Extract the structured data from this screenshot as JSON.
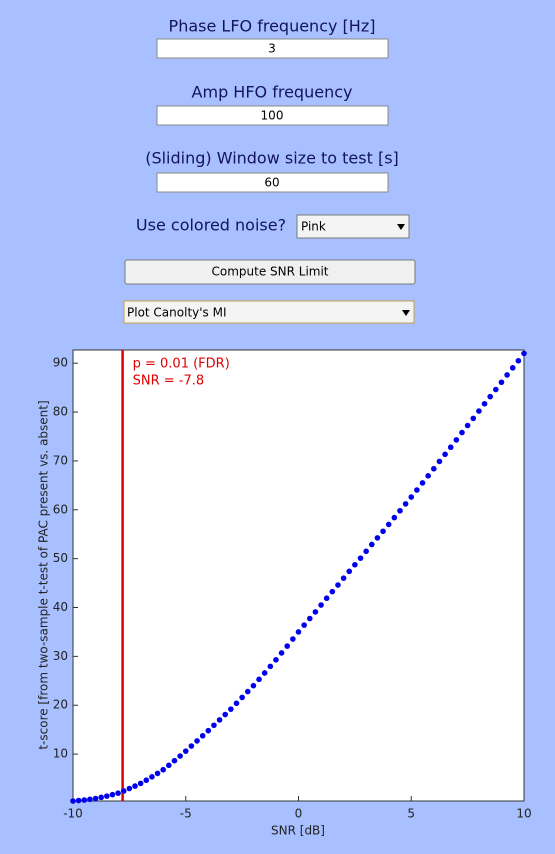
{
  "form": {
    "fields": [
      {
        "label": "Phase LFO frequency [Hz]",
        "value": "3"
      },
      {
        "label": "Amp HFO frequency",
        "value": "100"
      },
      {
        "label": "(Sliding) Window size to test [s]",
        "value": "60"
      }
    ],
    "noise": {
      "label": "Use colored noise?",
      "value": "Pink"
    },
    "button": "Compute SNR Limit",
    "plot_select": "Plot Canolty's MI"
  },
  "chart_data": {
    "type": "scatter",
    "xlabel": "SNR [dB]",
    "ylabel": "t-score [from two-sample t-test of PAC present vs. absent]",
    "color": "#0000ee",
    "xlim": [
      -10,
      10
    ],
    "xticks": [
      -10,
      -5,
      0,
      5,
      10
    ],
    "ylim": [
      0.4,
      92.7
    ],
    "yticks": [
      10,
      20,
      30,
      40,
      50,
      60,
      70,
      80,
      90
    ],
    "x": [
      -10,
      -9.75,
      -9.5,
      -9.25,
      -9,
      -8.75,
      -8.5,
      -8.25,
      -8,
      -7.75,
      -7.5,
      -7.25,
      -7,
      -6.75,
      -6.5,
      -6.25,
      -6,
      -5.75,
      -5.5,
      -5.25,
      -5,
      -4.75,
      -4.5,
      -4.25,
      -4,
      -3.75,
      -3.5,
      -3.25,
      -3,
      -2.75,
      -2.5,
      -2.25,
      -2,
      -1.75,
      -1.5,
      -1.25,
      -1,
      -0.75,
      -0.5,
      -0.25,
      0,
      0.25,
      0.5,
      0.75,
      1,
      1.25,
      1.5,
      1.75,
      2,
      2.25,
      2.5,
      2.75,
      3,
      3.25,
      3.5,
      3.75,
      4,
      4.25,
      4.5,
      4.75,
      5,
      5.25,
      5.5,
      5.75,
      6,
      6.25,
      6.5,
      6.75,
      7,
      7.25,
      7.5,
      7.75,
      8,
      8.25,
      8.5,
      8.75,
      9,
      9.25,
      9.5,
      9.75,
      10
    ],
    "values": [
      0.4,
      0.5,
      0.6,
      0.75,
      0.9,
      1.15,
      1.4,
      1.7,
      2.0,
      2.45,
      2.95,
      3.45,
      4.0,
      4.65,
      5.35,
      6.05,
      6.8,
      7.7,
      8.65,
      9.6,
      10.6,
      11.65,
      12.7,
      13.75,
      14.8,
      15.9,
      17.0,
      18.1,
      19.2,
      20.4,
      21.6,
      22.8,
      24.0,
      25.3,
      26.6,
      27.95,
      29.3,
      30.7,
      32.1,
      33.55,
      35.0,
      36.4,
      37.75,
      39.1,
      40.5,
      41.9,
      43.25,
      44.6,
      46.0,
      47.4,
      48.75,
      50.1,
      51.5,
      52.9,
      54.25,
      55.6,
      57.0,
      58.4,
      59.8,
      61.2,
      62.6,
      64.05,
      65.5,
      66.95,
      68.4,
      69.9,
      71.35,
      72.8,
      74.3,
      75.8,
      77.25,
      78.7,
      80.2,
      81.7,
      83.15,
      84.6,
      86.1,
      87.6,
      89.05,
      90.5,
      92.0
    ],
    "vline": {
      "x": -7.8,
      "color": "#e00000"
    },
    "annotations": [
      "p = 0.01 (FDR)",
      "SNR = -7.8"
    ]
  }
}
